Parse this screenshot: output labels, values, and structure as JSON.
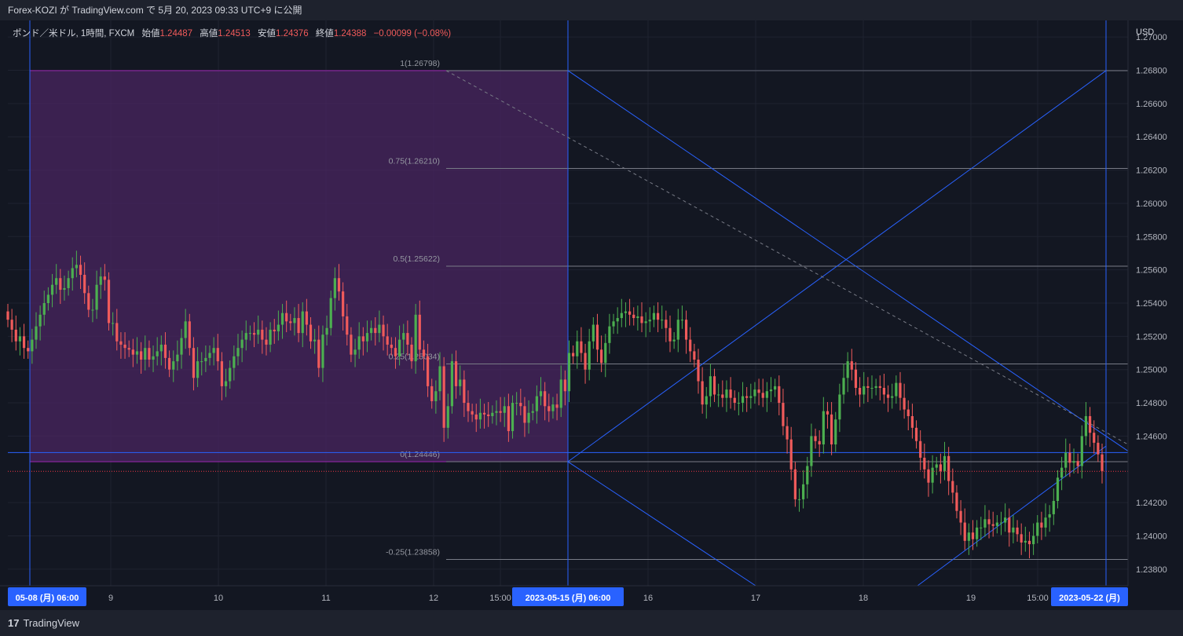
{
  "header": {
    "title": "Forex-KOZI が TradingView.com で 5月 20, 2023 09:33 UTC+9 に公開"
  },
  "legend": {
    "symbol": "ポンド／米ドル, 1時間, FXCM",
    "open_label": "始値",
    "open": "1.24487",
    "high_label": "高値",
    "high": "1.24513",
    "low_label": "安値",
    "low": "1.24376",
    "close_label": "終値",
    "close": "1.24388",
    "change": "−0.00099 (−0.08%)"
  },
  "footer": {
    "logo": "TradingView"
  },
  "colors": {
    "background": "#131722",
    "up": "#26a69a",
    "down": "#ef5350",
    "upBody": "#4caf50",
    "downBody": "#f05b5b",
    "fibBox": "#4a2560",
    "lines": "#2962ff",
    "fib": "#787b86"
  },
  "chart_data": {
    "type": "candlestick",
    "symbol": "GBPUSD",
    "timeframe": "1h",
    "currency": "USD",
    "ylim": [
      1.237,
      1.271
    ],
    "y_ticks": [
      "1.27000",
      "1.26800",
      "1.26600",
      "1.26400",
      "1.26200",
      "1.26000",
      "1.25800",
      "1.25600",
      "1.25400",
      "1.25200",
      "1.25000",
      "1.24800",
      "1.24600",
      "1.24200",
      "1.24000",
      "1.23800"
    ],
    "x_labels": [
      "05-08 (月)  06:00",
      "9",
      "10",
      "11",
      "12",
      "15:00",
      "2023-05-15 (月)  06:00",
      "16",
      "17",
      "18",
      "19",
      "15:00",
      "2023-05-22 (月)"
    ],
    "fib_levels": [
      {
        "label": "1(1.26798)",
        "price": 1.26798
      },
      {
        "label": "0.75(1.26210)",
        "price": 1.2621
      },
      {
        "label": "0.5(1.25622)",
        "price": 1.25622
      },
      {
        "label": "0.25(1.25034)",
        "price": 1.25034
      },
      {
        "label": "0(1.24446)",
        "price": 1.24446
      },
      {
        "label": "-0.25(1.23858)",
        "price": 1.23858
      }
    ],
    "price_labels": [
      {
        "value": "1.24501",
        "price": 1.24501,
        "color": "#2962ff"
      },
      {
        "value": "1.24388",
        "price": 1.24388,
        "color": "#f23645"
      }
    ],
    "closes": [
      1.253,
      1.2524,
      1.2517,
      1.252,
      1.2513,
      1.2511,
      1.2518,
      1.2526,
      1.2533,
      1.254,
      1.2545,
      1.2551,
      1.2555,
      1.2548,
      1.2549,
      1.2555,
      1.2561,
      1.2563,
      1.2557,
      1.2546,
      1.2536,
      1.2536,
      1.2551,
      1.2556,
      1.2554,
      1.2528,
      1.2528,
      1.2517,
      1.2515,
      1.2513,
      1.2512,
      1.2509,
      1.2511,
      1.2506,
      1.2513,
      1.2506,
      1.2508,
      1.2511,
      1.2515,
      1.2507,
      1.25,
      1.2505,
      1.2509,
      1.2519,
      1.2529,
      1.2513,
      1.2495,
      1.2505,
      1.2505,
      1.2507,
      1.251,
      1.2513,
      1.2505,
      1.249,
      1.2493,
      1.2501,
      1.2508,
      1.2513,
      1.2518,
      1.2522,
      1.2522,
      1.2521,
      1.2524,
      1.2518,
      1.2515,
      1.2524,
      1.2523,
      1.2527,
      1.2534,
      1.2529,
      1.2528,
      1.2531,
      1.2522,
      1.2535,
      1.2527,
      1.2517,
      1.2518,
      1.2501,
      1.2521,
      1.2525,
      1.2543,
      1.2555,
      1.2547,
      1.2532,
      1.2521,
      1.2509,
      1.2512,
      1.252,
      1.2517,
      1.2522,
      1.2525,
      1.2522,
      1.2527,
      1.252,
      1.2515,
      1.2513,
      1.2508,
      1.2518,
      1.2522,
      1.2515,
      1.2505,
      1.2533,
      1.2512,
      1.2508,
      1.249,
      1.2481,
      1.2487,
      1.2502,
      1.2465,
      1.2478,
      1.2505,
      1.249,
      1.2494,
      1.248,
      1.2475,
      1.2473,
      1.247,
      1.2474,
      1.2473,
      1.2472,
      1.2474,
      1.2475,
      1.2474,
      1.2478,
      1.2463,
      1.248,
      1.248,
      1.2478,
      1.2468,
      1.2474,
      1.2475,
      1.2484,
      1.2487,
      1.2478,
      1.2475,
      1.2479,
      1.2477,
      1.2494,
      1.2487,
      1.251,
      1.2508,
      1.2517,
      1.251,
      1.25,
      1.2517,
      1.2527,
      1.2512,
      1.2504,
      1.2516,
      1.2526,
      1.2529,
      1.2531,
      1.2534,
      1.2535,
      1.2533,
      1.2531,
      1.2532,
      1.2528,
      1.2529,
      1.253,
      1.2534,
      1.253,
      1.253,
      1.2525,
      1.2517,
      1.2518,
      1.253,
      1.253,
      1.2518,
      1.2511,
      1.2506,
      1.2493,
      1.2479,
      1.2484,
      1.2496,
      1.2485,
      1.2485,
      1.2483,
      1.2488,
      1.2483,
      1.248,
      1.248,
      1.2484,
      1.2483,
      1.2484,
      1.2488,
      1.2486,
      1.2483,
      1.2487,
      1.2488,
      1.249,
      1.248,
      1.2466,
      1.2458,
      1.244,
      1.2422,
      1.2422,
      1.2431,
      1.2442,
      1.246,
      1.2457,
      1.2455,
      1.2475,
      1.2473,
      1.2455,
      1.247,
      1.2485,
      1.2495,
      1.2505,
      1.25,
      1.2489,
      1.2485,
      1.249,
      1.2489,
      1.2489,
      1.249,
      1.2489,
      1.2485,
      1.2483,
      1.2484,
      1.2492,
      1.2483,
      1.2476,
      1.2472,
      1.2465,
      1.2457,
      1.2447,
      1.244,
      1.2432,
      1.2441,
      1.2443,
      1.2439,
      1.2448,
      1.2433,
      1.2426,
      1.2415,
      1.2408,
      1.2397,
      1.2402,
      1.2398,
      1.2405,
      1.2405,
      1.241,
      1.2407,
      1.2406,
      1.2408,
      1.2408,
      1.2411,
      1.2402,
      1.2405,
      1.2401,
      1.2396,
      1.2397,
      1.2395,
      1.24,
      1.2408,
      1.2405,
      1.2411,
      1.2413,
      1.2421,
      1.2435,
      1.2441,
      1.245,
      1.2444,
      1.2445,
      1.2442,
      1.246,
      1.2472,
      1.2462,
      1.2456,
      1.2449,
      1.2439
    ]
  }
}
